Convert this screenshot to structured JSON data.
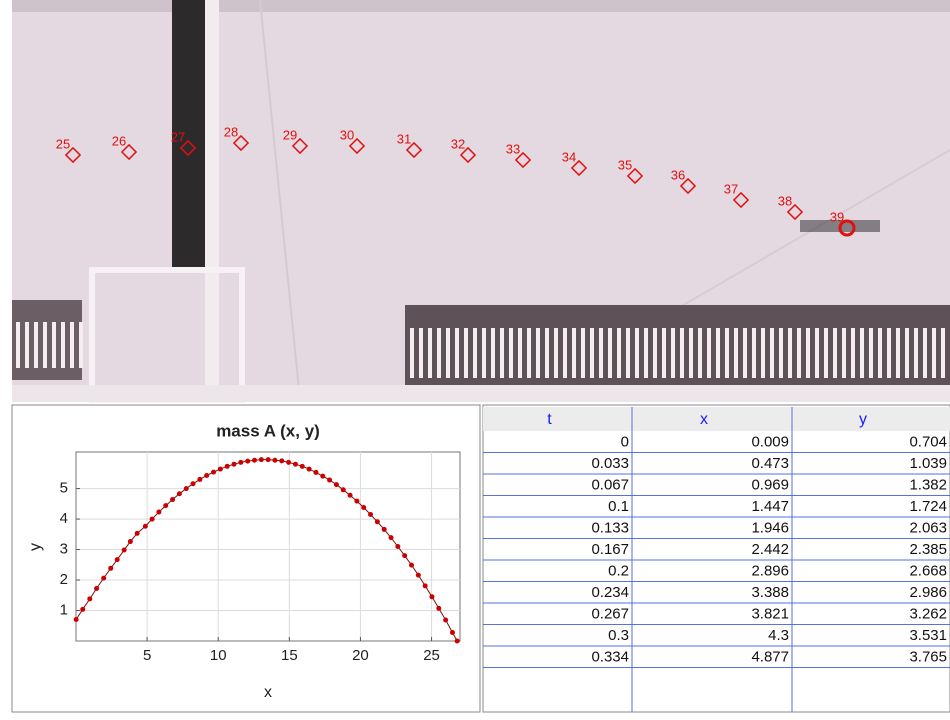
{
  "video": {
    "marker_labels": [
      "25",
      "26",
      "27",
      "28",
      "29",
      "30",
      "31",
      "32",
      "33",
      "34",
      "35",
      "36",
      "37",
      "38",
      "39"
    ]
  },
  "chart_data": {
    "type": "line",
    "title": "mass A (x, y)",
    "x_label": "x",
    "y_label": "y",
    "color": "#cc0000",
    "grid": true,
    "xlim": [
      0,
      27
    ],
    "ylim": [
      0,
      6.2
    ],
    "xticks": [
      5,
      10,
      15,
      20,
      25
    ],
    "yticks": [
      1,
      2,
      3,
      4,
      5
    ],
    "x": [
      0.009,
      0.473,
      0.969,
      1.447,
      1.946,
      2.442,
      2.896,
      3.388,
      3.821,
      4.3,
      4.877,
      5.35,
      5.83,
      6.31,
      6.79,
      7.27,
      7.75,
      8.23,
      8.71,
      9.19,
      9.67,
      10.15,
      10.63,
      11.11,
      11.59,
      12.07,
      12.55,
      13.03,
      13.51,
      13.99,
      14.47,
      14.95,
      15.43,
      15.91,
      16.39,
      16.87,
      17.35,
      17.83,
      18.31,
      18.79,
      19.27,
      19.75,
      20.23,
      20.71,
      21.19,
      21.67,
      22.15,
      22.63,
      23.11,
      23.59,
      24.07,
      24.55,
      25.03,
      25.51,
      25.99,
      26.47,
      26.8
    ],
    "values": [
      0.704,
      1.039,
      1.382,
      1.724,
      2.063,
      2.385,
      2.668,
      2.986,
      3.262,
      3.531,
      3.765,
      4.0,
      4.23,
      4.44,
      4.64,
      4.83,
      5.0,
      5.16,
      5.3,
      5.43,
      5.54,
      5.64,
      5.73,
      5.8,
      5.86,
      5.9,
      5.93,
      5.95,
      5.95,
      5.93,
      5.91,
      5.86,
      5.8,
      5.73,
      5.64,
      5.53,
      5.41,
      5.28,
      5.13,
      4.96,
      4.78,
      4.59,
      4.38,
      4.15,
      3.91,
      3.66,
      3.39,
      3.1,
      2.8,
      2.49,
      2.16,
      1.81,
      1.45,
      1.07,
      0.69,
      0.28,
      0
    ]
  },
  "table": {
    "columns": [
      "t",
      "x",
      "y"
    ],
    "rows": [
      [
        0,
        0.009,
        0.704
      ],
      [
        0.033,
        0.473,
        1.039
      ],
      [
        0.067,
        0.969,
        1.382
      ],
      [
        0.1,
        1.447,
        1.724
      ],
      [
        0.133,
        1.946,
        2.063
      ],
      [
        0.167,
        2.442,
        2.385
      ],
      [
        0.2,
        2.896,
        2.668
      ],
      [
        0.234,
        3.388,
        2.986
      ],
      [
        0.267,
        3.821,
        3.262
      ],
      [
        0.3,
        4.3,
        3.531
      ],
      [
        0.334,
        4.877,
        3.765
      ]
    ]
  }
}
